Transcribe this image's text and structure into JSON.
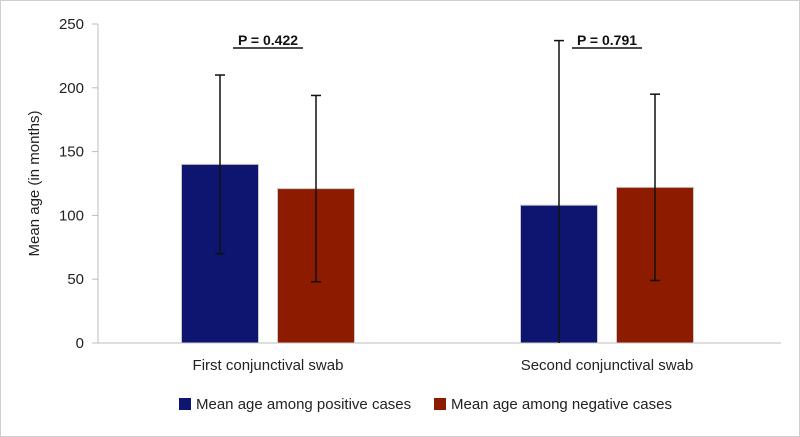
{
  "chart_data": {
    "type": "bar",
    "categories": [
      "First conjunctival swab",
      "Second conjunctival swab"
    ],
    "series": [
      {
        "name": "Mean age among positive cases",
        "color": "#0d1570",
        "values": [
          140,
          108
        ],
        "error": [
          70,
          129
        ]
      },
      {
        "name": "Mean age among negative cases",
        "color": "#8c1b00",
        "values": [
          121,
          122
        ],
        "error": [
          73,
          73
        ]
      }
    ],
    "ylabel": "Mean age (in months)",
    "yticks": [
      0,
      50,
      100,
      150,
      200,
      250
    ],
    "ylim": [
      0,
      250
    ],
    "grid": false,
    "legend": "bottom",
    "annotations": [
      "P = 0.422",
      "P = 0.791"
    ]
  }
}
